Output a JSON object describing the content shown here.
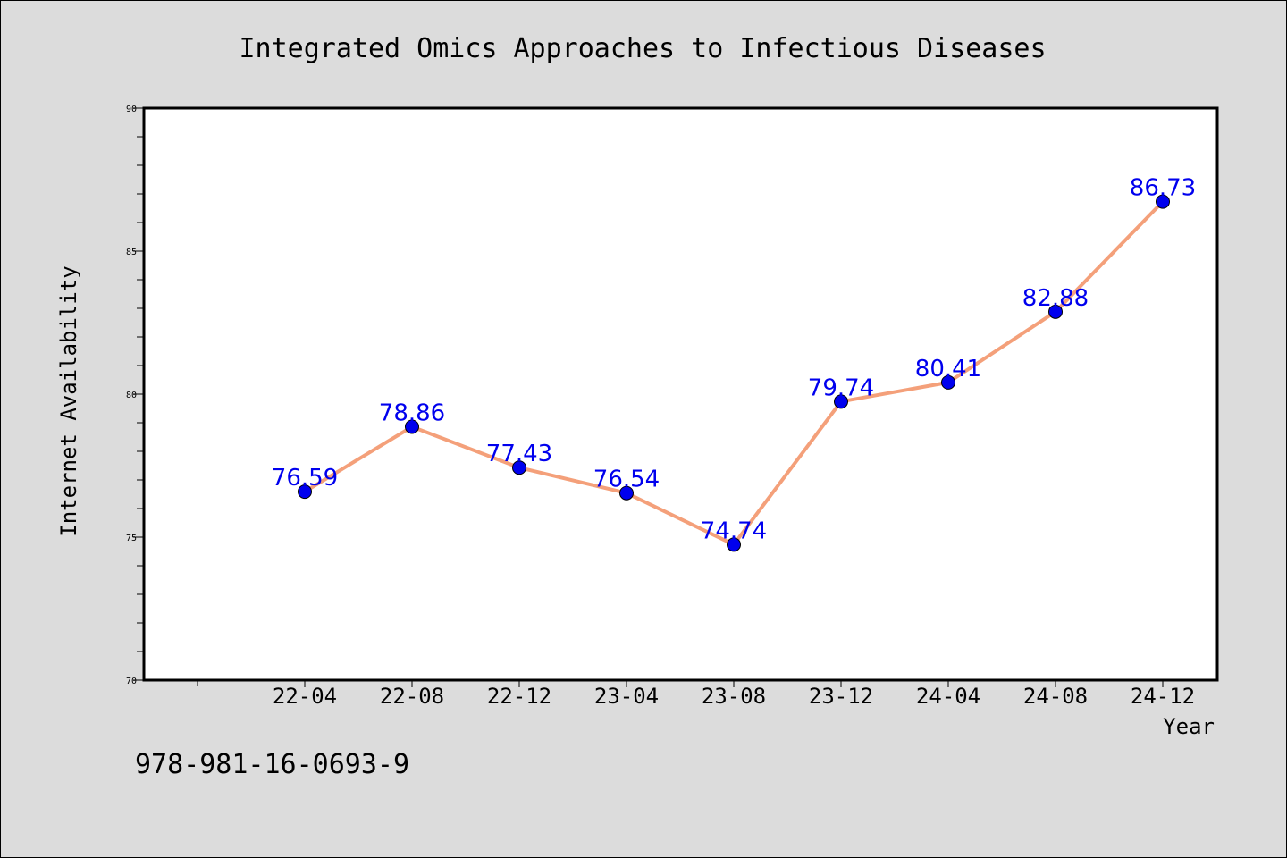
{
  "chart_data": {
    "type": "line",
    "title": "Integrated Omics Approaches to Infectious Diseases",
    "xlabel": "Year",
    "ylabel": "Internet Availability",
    "categories": [
      "22-04",
      "22-08",
      "22-12",
      "23-04",
      "23-08",
      "23-12",
      "24-04",
      "24-08",
      "24-12"
    ],
    "series": [
      {
        "values": [
          76.59,
          78.86,
          77.43,
          76.54,
          74.74,
          79.74,
          80.41,
          82.88,
          86.73
        ],
        "line_color": "#f4a07a",
        "marker_color": "#0000ee",
        "label_color": "#0000ee"
      }
    ],
    "ylim": [
      70,
      90
    ],
    "yticks": [
      70,
      75,
      80,
      85,
      90
    ],
    "grid": false,
    "legend": "none"
  },
  "footer": {
    "isbn": "978-981-16-0693-9"
  }
}
